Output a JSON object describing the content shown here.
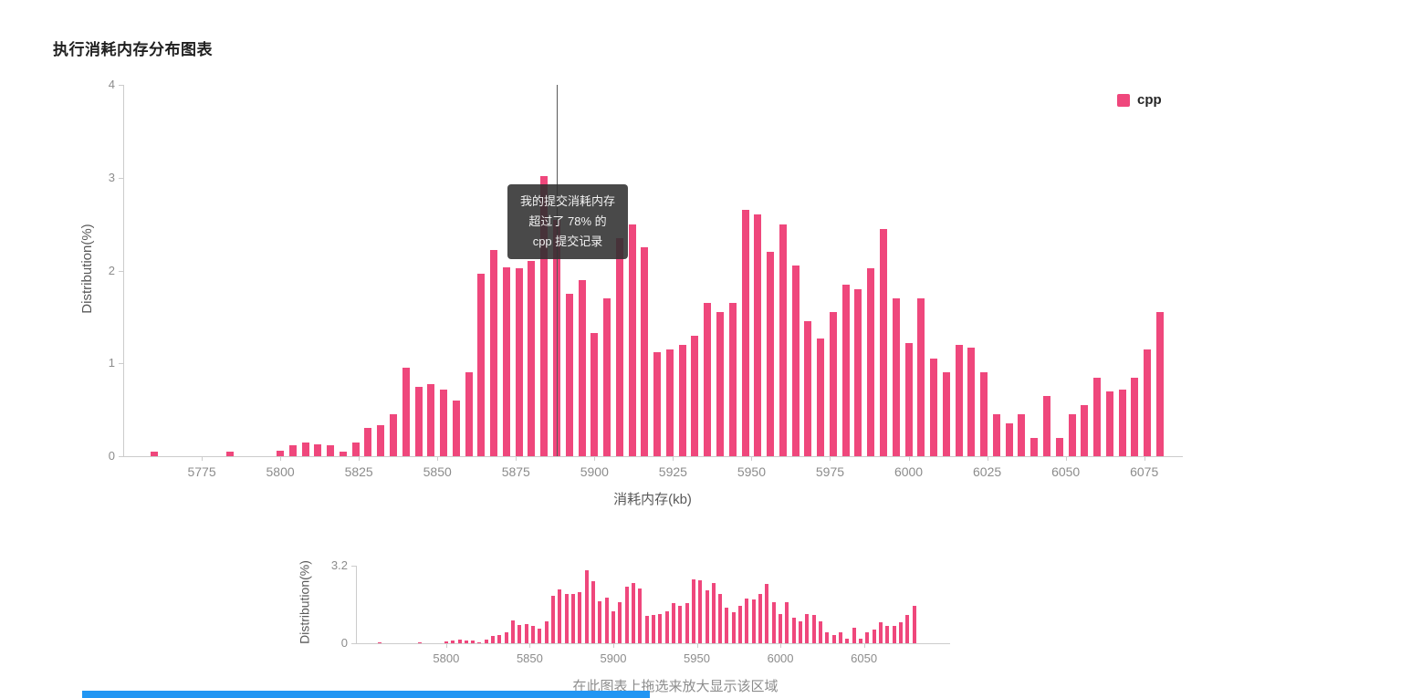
{
  "page": {
    "title": "执行消耗内存分布图表"
  },
  "colors": {
    "bar": "#ef477c",
    "footer_blue": "#2196f3",
    "axis_line": "#cccccc",
    "tick_text": "#8c8c8c"
  },
  "tooltip": {
    "lines": [
      "我的提交消耗内存",
      "超过了 78% 的",
      "cpp 提交记录"
    ],
    "marker_x_kb": 5888
  },
  "navigator": {
    "hint": "在此图表上拖选来放大显示该区域"
  },
  "chart_data": [
    {
      "type": "bar",
      "title": "执行消耗内存分布图表",
      "xlabel": "消耗内存(kb)",
      "ylabel": "Distribution(%)",
      "legend": "cpp",
      "legend_position": "top-right",
      "grid": false,
      "xlim": [
        5750,
        6087
      ],
      "ylim": [
        0,
        4
      ],
      "xticks": [
        5775,
        5800,
        5825,
        5850,
        5875,
        5900,
        5925,
        5950,
        5975,
        6000,
        6025,
        6050,
        6075
      ],
      "yticks": [
        0,
        1,
        2,
        3,
        4
      ],
      "x": [
        5760,
        5764,
        5768,
        5772,
        5776,
        5780,
        5784,
        5788,
        5792,
        5796,
        5800,
        5804,
        5808,
        5812,
        5816,
        5820,
        5824,
        5828,
        5832,
        5836,
        5840,
        5844,
        5848,
        5852,
        5856,
        5860,
        5864,
        5868,
        5872,
        5876,
        5880,
        5884,
        5888,
        5892,
        5896,
        5900,
        5904,
        5908,
        5912,
        5916,
        5920,
        5924,
        5928,
        5932,
        5936,
        5940,
        5944,
        5948,
        5952,
        5956,
        5960,
        5964,
        5968,
        5972,
        5976,
        5980,
        5984,
        5988,
        5992,
        5996,
        6000,
        6004,
        6008,
        6012,
        6016,
        6020,
        6024,
        6028,
        6032,
        6036,
        6040,
        6044,
        6048,
        6052,
        6056,
        6060,
        6064,
        6068,
        6072,
        6076,
        6080
      ],
      "values": [
        0.05,
        0,
        0,
        0,
        0,
        0,
        0.05,
        0,
        0,
        0,
        0.06,
        0.12,
        0.15,
        0.13,
        0.12,
        0.05,
        0.15,
        0.3,
        0.33,
        0.45,
        0.95,
        0.75,
        0.78,
        0.72,
        0.6,
        0.9,
        1.97,
        2.22,
        2.03,
        2.02,
        2.1,
        3.02,
        2.55,
        1.75,
        1.9,
        1.33,
        1.7,
        2.35,
        2.5,
        2.25,
        1.12,
        1.15,
        1.2,
        1.3,
        1.65,
        1.55,
        1.65,
        2.65,
        2.6,
        2.2,
        2.5,
        2.05,
        1.45,
        1.27,
        1.55,
        1.85,
        1.8,
        2.02,
        2.45,
        1.7,
        1.22,
        1.7,
        1.05,
        0.9,
        1.2,
        1.17,
        0.9,
        0.45,
        0.35,
        0.45,
        0.2,
        0.65,
        0.2,
        0.45,
        0.55,
        0.85,
        0.7,
        0.72,
        0.85,
        1.15,
        1.55
      ]
    },
    {
      "type": "bar",
      "role": "navigator-overview",
      "ylabel": "Distribution(%)",
      "series_same_as": 0,
      "xlim": [
        5746,
        6101
      ],
      "ylim": [
        0,
        3.2
      ],
      "xticks": [
        5800,
        5850,
        5900,
        5950,
        6000,
        6050
      ],
      "yticks": [
        0,
        3.2
      ]
    }
  ]
}
